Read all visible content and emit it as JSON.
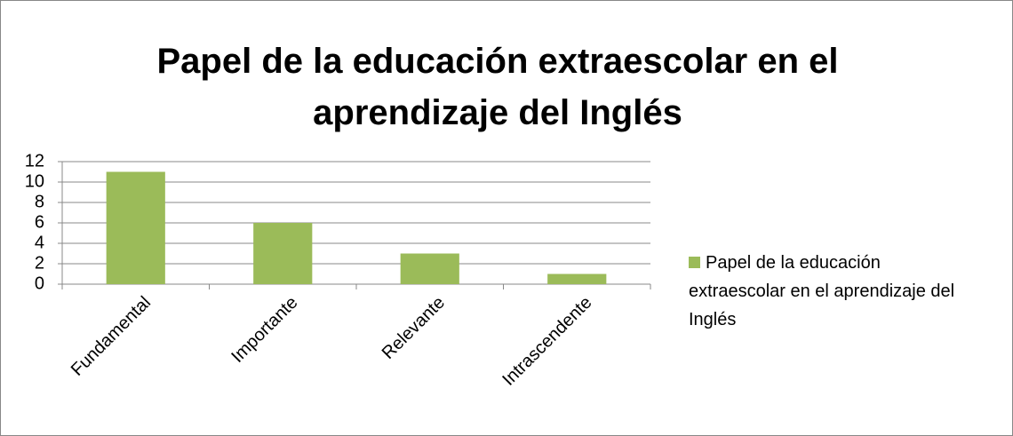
{
  "chart_data": {
    "type": "bar",
    "title": "Papel de la educación extraescolar en el aprendizaje del Inglés",
    "categories": [
      "Fundamental",
      "Importante",
      "Relevante",
      "Intrascendente"
    ],
    "series": [
      {
        "name": "Papel de la educación extraescolar en el aprendizaje del Inglés",
        "color": "#9bbb59",
        "values": [
          11,
          6,
          3,
          1
        ]
      }
    ],
    "ylim": [
      0,
      12
    ],
    "yticks": [
      0,
      2,
      4,
      6,
      8,
      10,
      12
    ],
    "grid": true,
    "legend": "right"
  }
}
